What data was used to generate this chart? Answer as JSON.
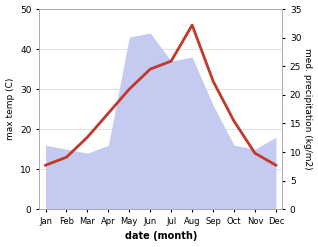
{
  "months": [
    "Jan",
    "Feb",
    "Mar",
    "Apr",
    "May",
    "Jun",
    "Jul",
    "Aug",
    "Sep",
    "Oct",
    "Nov",
    "Dec"
  ],
  "temp": [
    11,
    13,
    18,
    24,
    30,
    35,
    37,
    46,
    32,
    22,
    14,
    11
  ],
  "precip_left_axis": [
    16,
    15,
    14,
    16,
    43,
    44,
    37,
    38,
    26,
    16,
    15,
    18
  ],
  "temp_color": "#c0392b",
  "precip_color_fill": "#c5caf0",
  "ylim_left": [
    0,
    50
  ],
  "ylim_right": [
    0,
    35
  ],
  "xlabel": "date (month)",
  "ylabel_left": "max temp (C)",
  "ylabel_right": "med. precipitation (kg/m2)",
  "bg_color": "#ffffff",
  "grid_color": "#d8d8d8",
  "temp_linewidth": 2.0
}
